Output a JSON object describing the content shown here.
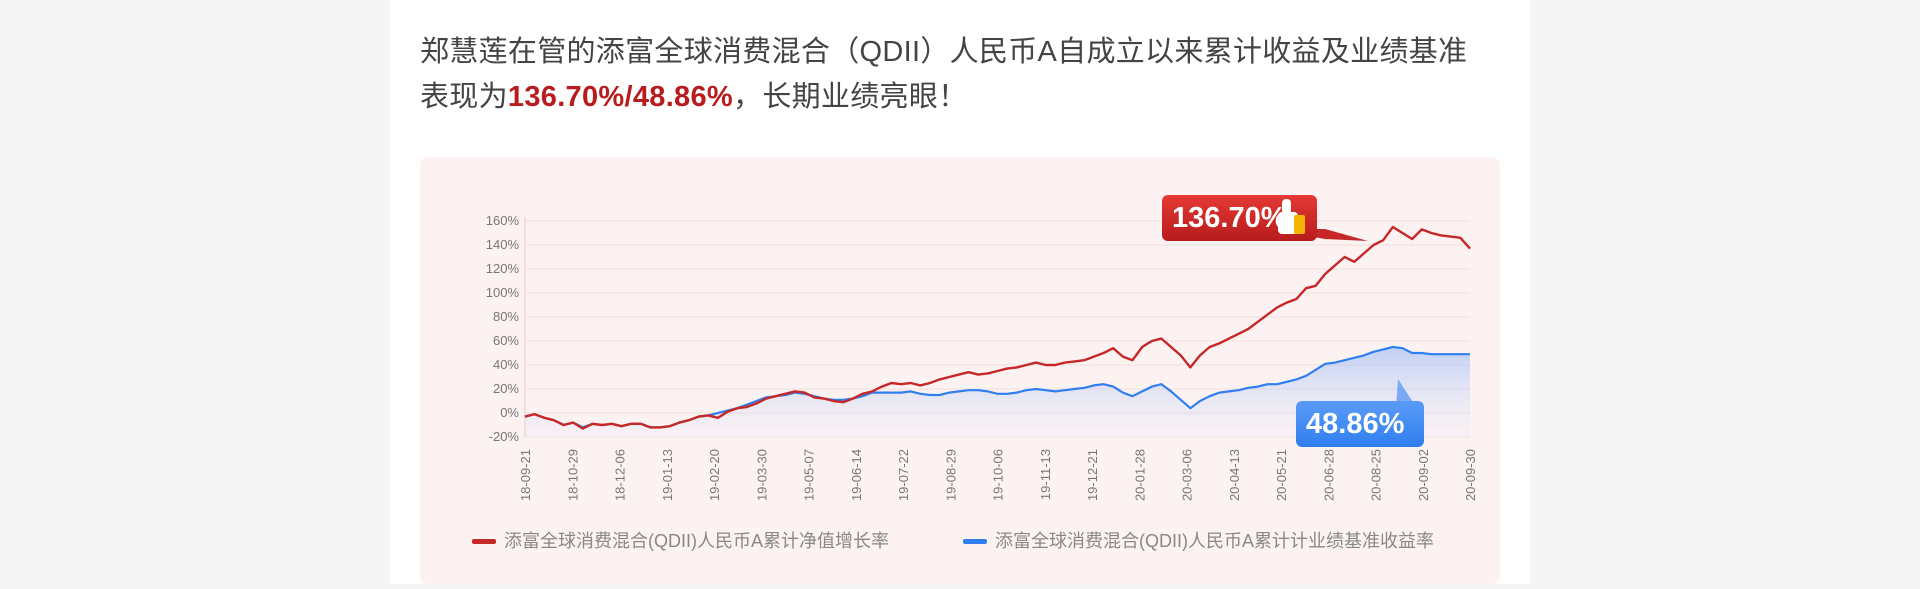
{
  "headline": {
    "line1": "郑慧莲在管的添富全球消费混合（QDII）人民币A自成立以来累计收益及业绩基准",
    "line2_prefix": "表现为",
    "line2_highlight": "136.70%/48.86%",
    "line2_suffix": "，长期业绩亮眼！"
  },
  "colors": {
    "fund": "#c62828",
    "benchmark": "#2f7ff0",
    "highlight": "#b91c1c",
    "panel_bg": "#fdf2f2"
  },
  "chart_data": {
    "type": "line",
    "title": "",
    "xlabel": "",
    "ylabel": "",
    "ylim": [
      -20,
      160
    ],
    "y_ticks": [
      "-20%",
      "0%",
      "20%",
      "40%",
      "60%",
      "80%",
      "100%",
      "120%",
      "140%",
      "160%"
    ],
    "x_ticks": [
      "18-09-21",
      "18-10-29",
      "18-12-06",
      "19-01-13",
      "19-02-20",
      "19-03-30",
      "19-05-07",
      "19-06-14",
      "19-07-22",
      "19-08-29",
      "19-10-06",
      "19-11-13",
      "19-12-21",
      "20-01-28",
      "20-03-06",
      "20-04-13",
      "20-05-21",
      "20-06-28",
      "20-08-25",
      "20-09-02",
      "20-09-30"
    ],
    "legend_position": "bottom",
    "annotations": [
      {
        "text": "136.70%",
        "series": "fund",
        "icon": "thumbs-up-icon"
      },
      {
        "text": "48.86%",
        "series": "benchmark"
      }
    ],
    "series": [
      {
        "name": "添富全球消费混合(QDII)人民币A累计净值增长率",
        "key": "fund",
        "values": [
          -3,
          -1,
          -4,
          -6,
          -10,
          -8,
          -13,
          -9,
          -10,
          -9,
          -11,
          -9,
          -9,
          -12,
          -12,
          -11,
          -8,
          -6,
          -3,
          -2,
          -4,
          1,
          4,
          5,
          8,
          12,
          14,
          16,
          18,
          17,
          13,
          12,
          10,
          9,
          12,
          16,
          18,
          22,
          25,
          24,
          25,
          23,
          25,
          28,
          30,
          32,
          34,
          32,
          33,
          35,
          37,
          38,
          40,
          42,
          40,
          40,
          42,
          43,
          44,
          47,
          50,
          54,
          47,
          44,
          55,
          60,
          62,
          55,
          48,
          38,
          48,
          55,
          58,
          62,
          66,
          70,
          76,
          82,
          88,
          92,
          95,
          104,
          106,
          116,
          123,
          130,
          126,
          133,
          140,
          144,
          155,
          150,
          145,
          153,
          150,
          148,
          147,
          146,
          137
        ]
      },
      {
        "name": "添富全球消费混合(QDII)人民币A累计计业绩基准收益率",
        "key": "benchmark",
        "values": [
          -3,
          -1,
          -4,
          -6,
          -10,
          -8,
          -12,
          -9,
          -10,
          -9,
          -11,
          -9,
          -9,
          -12,
          -12,
          -11,
          -8,
          -6,
          -3,
          -2,
          0,
          2,
          4,
          7,
          10,
          13,
          14,
          15,
          17,
          16,
          14,
          12,
          11,
          11,
          12,
          14,
          17,
          17,
          17,
          17,
          18,
          16,
          15,
          15,
          17,
          18,
          19,
          19,
          18,
          16,
          16,
          17,
          19,
          20,
          19,
          18,
          19,
          20,
          21,
          23,
          24,
          22,
          17,
          14,
          18,
          22,
          24,
          18,
          11,
          4,
          10,
          14,
          17,
          18,
          19,
          21,
          22,
          24,
          24,
          26,
          28,
          31,
          36,
          41,
          42,
          44,
          46,
          48,
          51,
          53,
          55,
          54,
          50,
          50,
          49,
          49,
          49,
          49,
          49
        ]
      }
    ]
  }
}
